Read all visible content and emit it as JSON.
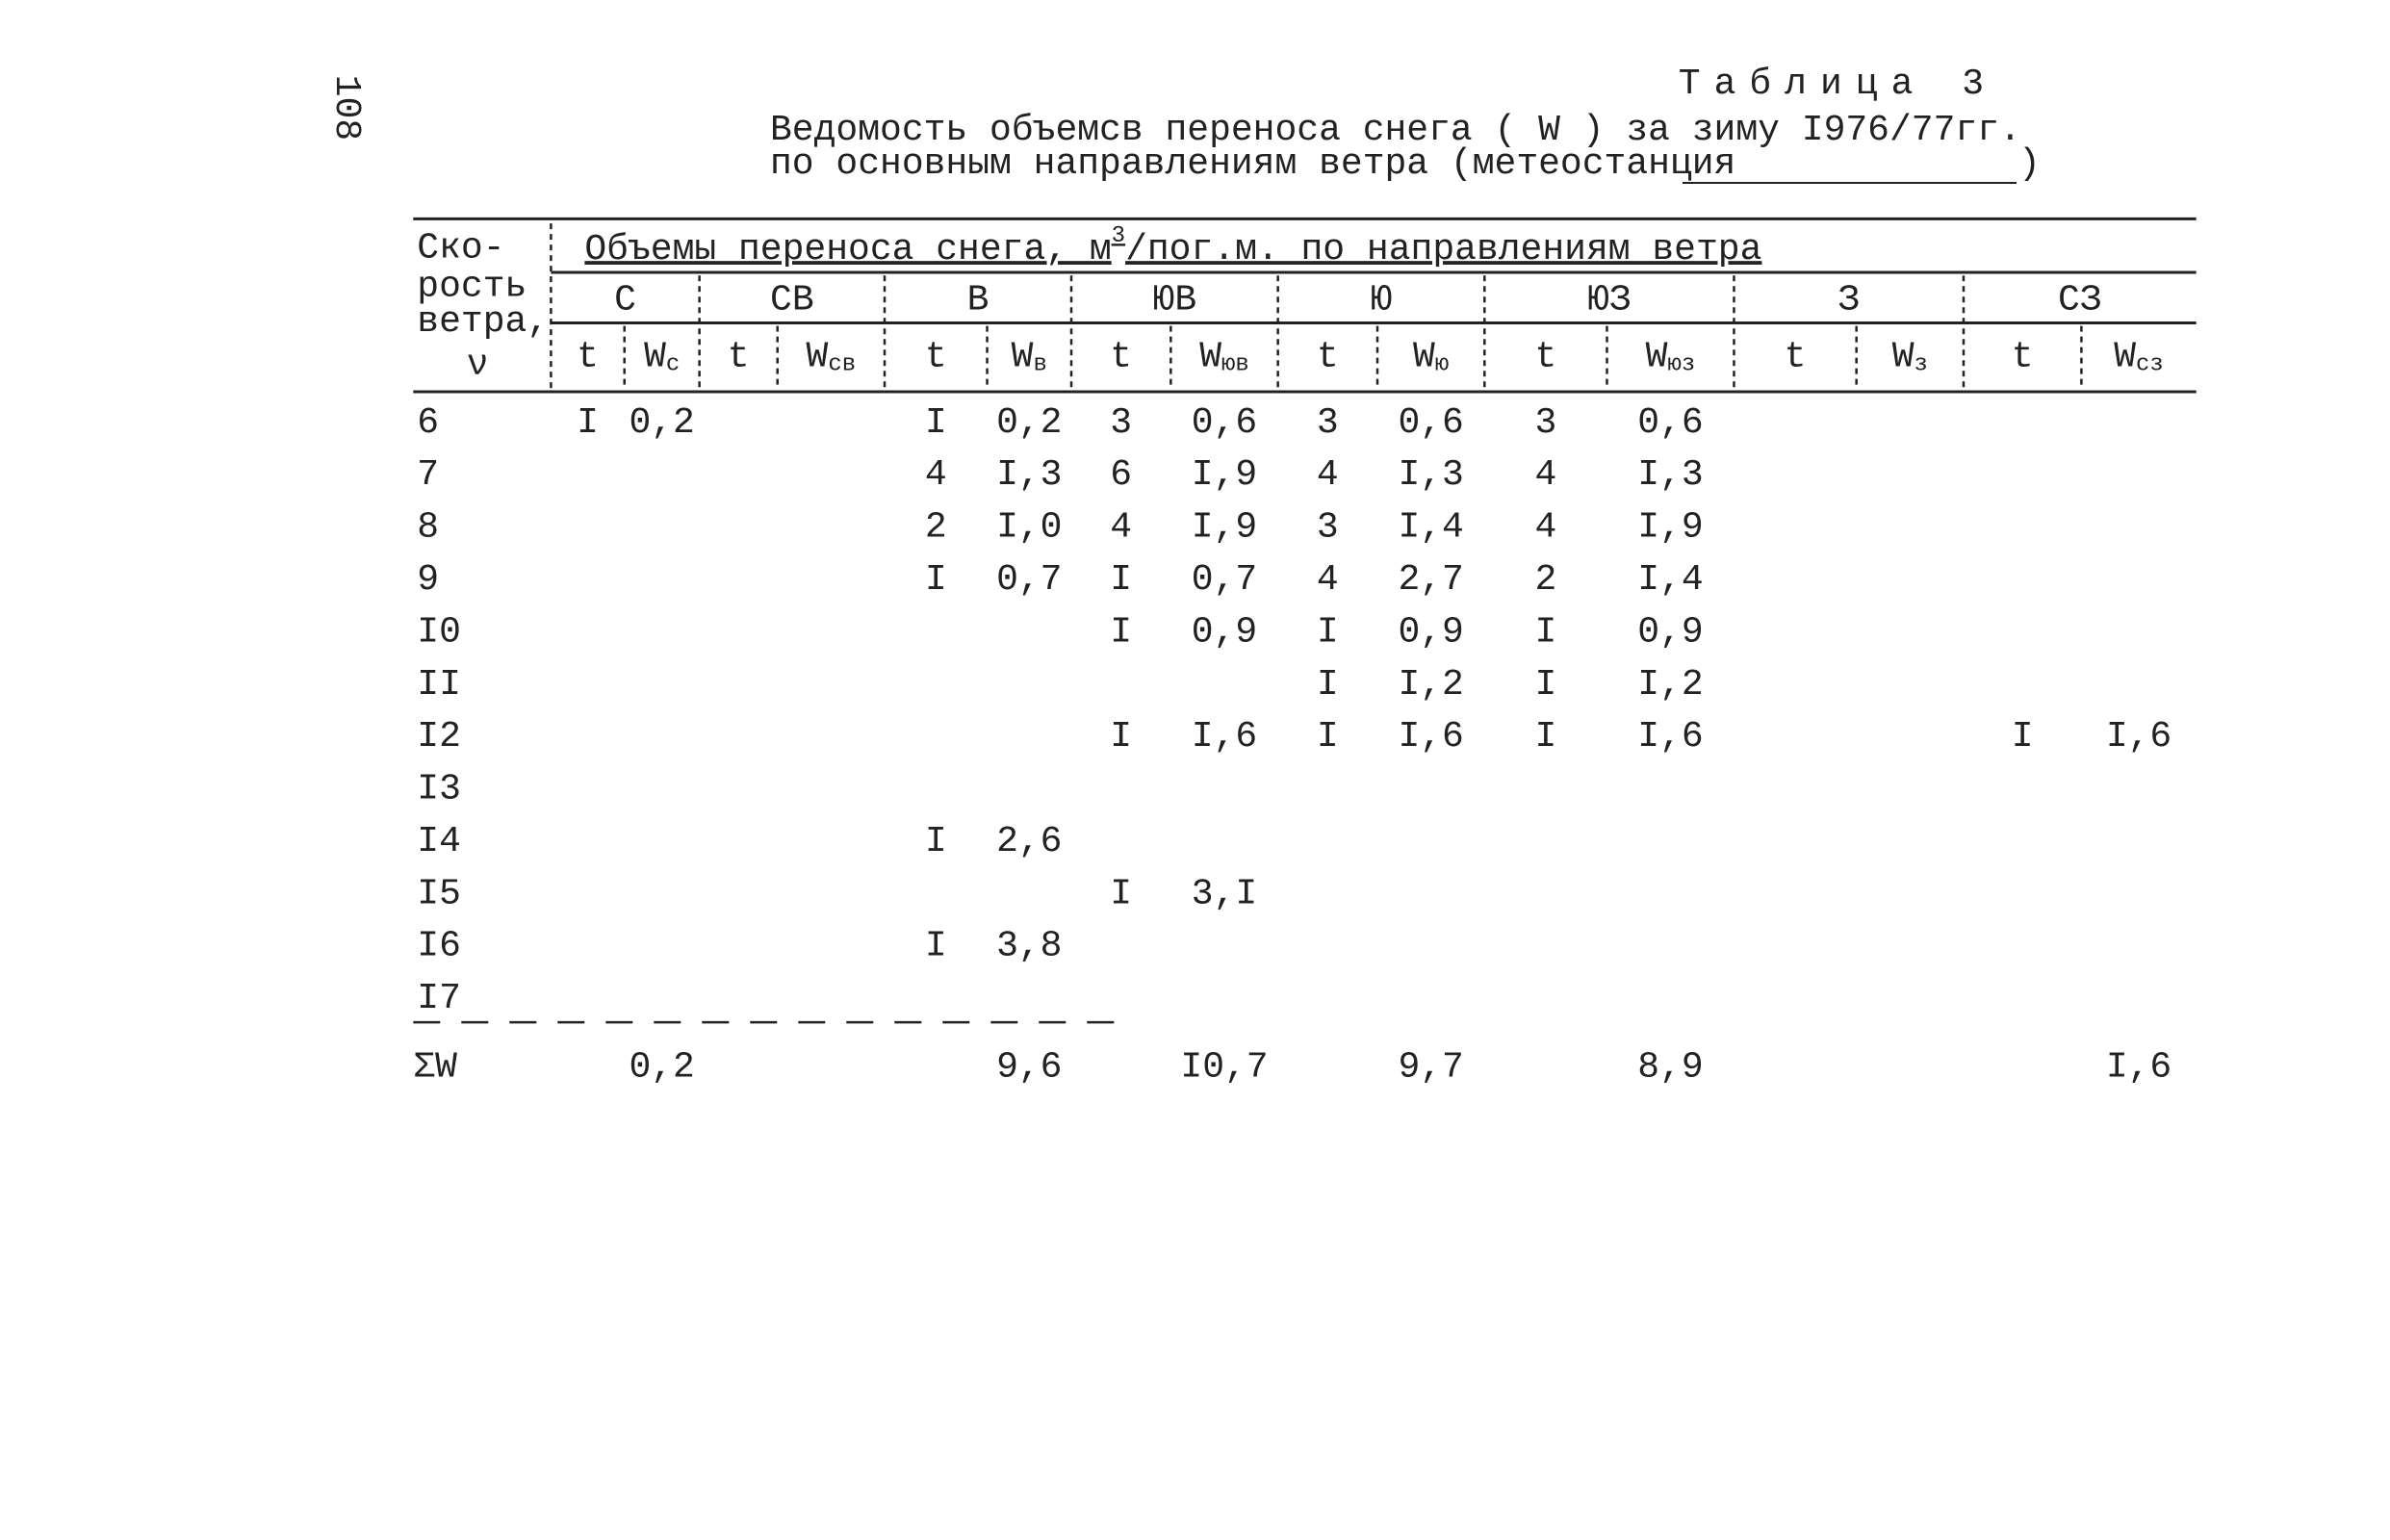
{
  "page_number": "108",
  "header": {
    "label": "Таблица 3",
    "title_line1": "Ведомость объемсв переноса снега ( W ) за зиму I976/77гг.",
    "title_line2": "по основным направлениям ветра (метеостанция",
    "title_close": ")"
  },
  "table": {
    "corner": [
      "Ско-",
      "рость",
      "ветра,",
      "ν"
    ],
    "group_header": [
      "Объемы переноса снега, м",
      "3",
      "/пог.м. по направлениям ветра"
    ],
    "directions": [
      "С",
      "СВ",
      "В",
      "ЮВ",
      "Ю",
      "ЮЗ",
      "З",
      "СЗ"
    ],
    "subheaders": [
      "t",
      {
        "main": "W",
        "sub": "с"
      },
      "t",
      {
        "main": "W",
        "sub": "св"
      },
      "t",
      {
        "main": "W",
        "sub": "в"
      },
      "t",
      {
        "main": "W",
        "sub": "юв"
      },
      "t",
      {
        "main": "W",
        "sub": "ю"
      },
      "t",
      {
        "main": "W",
        "sub": "юз"
      },
      "t",
      {
        "main": "W",
        "sub": "з"
      },
      "t",
      {
        "main": "W",
        "sub": "сз"
      }
    ],
    "rows": [
      {
        "speed": "6",
        "cells": [
          "I",
          "0,2",
          null,
          null,
          "I",
          "0,2",
          "3",
          "0,6",
          "3",
          "0,6",
          "3",
          "0,6",
          null,
          null,
          null,
          null
        ]
      },
      {
        "speed": "7",
        "cells": [
          null,
          null,
          null,
          null,
          "4",
          "I,3",
          "6",
          "I,9",
          "4",
          "I,3",
          "4",
          "I,3",
          null,
          null,
          null,
          null
        ]
      },
      {
        "speed": "8",
        "cells": [
          null,
          null,
          null,
          null,
          "2",
          "I,0",
          "4",
          "I,9",
          "3",
          "I,4",
          "4",
          "I,9",
          null,
          null,
          null,
          null
        ]
      },
      {
        "speed": "9",
        "cells": [
          null,
          null,
          null,
          null,
          "I",
          "0,7",
          "I",
          "0,7",
          "4",
          "2,7",
          "2",
          "I,4",
          null,
          null,
          null,
          null
        ]
      },
      {
        "speed": "I0",
        "cells": [
          null,
          null,
          null,
          null,
          null,
          null,
          "I",
          "0,9",
          "I",
          "0,9",
          "I",
          "0,9",
          null,
          null,
          null,
          null
        ]
      },
      {
        "speed": "II",
        "cells": [
          null,
          null,
          null,
          null,
          null,
          null,
          null,
          null,
          "I",
          "I,2",
          "I",
          "I,2",
          null,
          null,
          null,
          null
        ]
      },
      {
        "speed": "I2",
        "cells": [
          null,
          null,
          null,
          null,
          null,
          null,
          "I",
          "I,6",
          "I",
          "I,6",
          "I",
          "I,6",
          null,
          null,
          "I",
          "I,6"
        ]
      },
      {
        "speed": "I3",
        "cells": [
          null,
          null,
          null,
          null,
          null,
          null,
          null,
          null,
          null,
          null,
          null,
          null,
          null,
          null,
          null,
          null
        ]
      },
      {
        "speed": "I4",
        "cells": [
          null,
          null,
          null,
          null,
          "I",
          "2,6",
          null,
          null,
          null,
          null,
          null,
          null,
          null,
          null,
          null,
          null
        ]
      },
      {
        "speed": "I5",
        "cells": [
          null,
          null,
          null,
          null,
          null,
          null,
          "I",
          "3,I",
          null,
          null,
          null,
          null,
          null,
          null,
          null,
          null
        ]
      },
      {
        "speed": "I6",
        "cells": [
          null,
          null,
          null,
          null,
          "I",
          "3,8",
          null,
          null,
          null,
          null,
          null,
          null,
          null,
          null,
          null,
          null
        ]
      },
      {
        "speed": "I7",
        "cells": [
          null,
          null,
          null,
          null,
          null,
          null,
          null,
          null,
          null,
          null,
          null,
          null,
          null,
          null,
          null,
          null
        ]
      }
    ],
    "total": {
      "label": "ΣW",
      "cells": [
        null,
        "0,2",
        null,
        null,
        null,
        "9,6",
        null,
        "I0,7",
        null,
        "9,7",
        null,
        "8,9",
        null,
        null,
        null,
        "I,6"
      ]
    }
  }
}
